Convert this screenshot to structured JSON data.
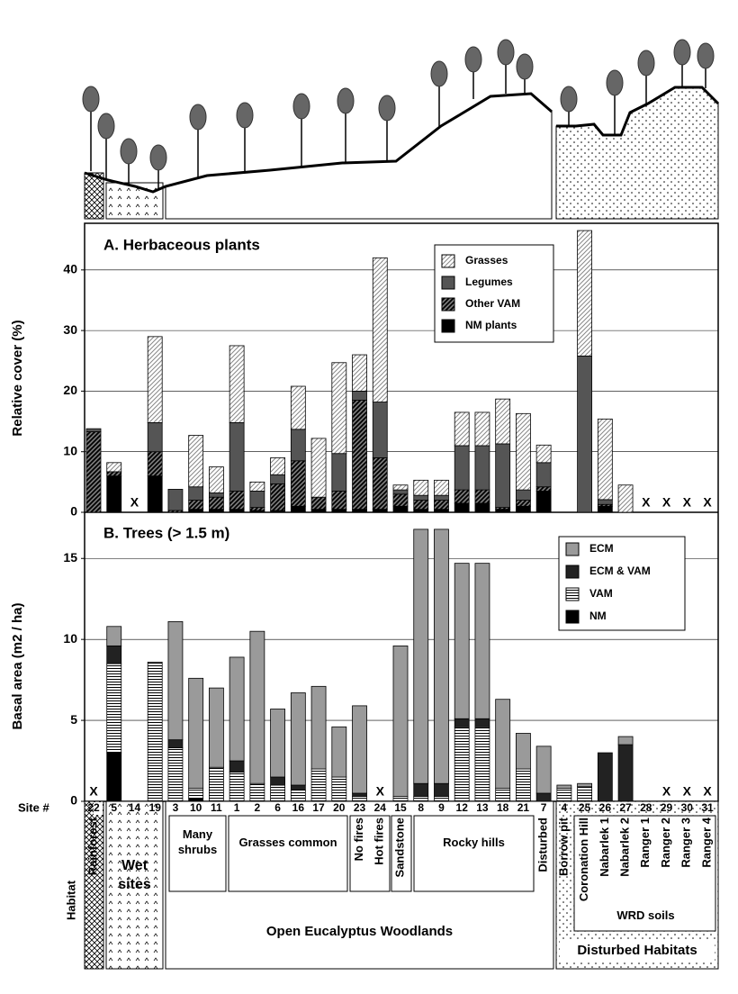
{
  "site_label": "Site #",
  "no_data_label": "X",
  "habitat": {
    "label": "Habitat",
    "labels": [
      "Rainforest",
      "Wet sites",
      "Many shrubs",
      "Grasses common",
      "No fires",
      "Hot fires",
      "Sandstone",
      "Rocky hills",
      "Disturbed",
      "Open Eucalyptus Woodlands",
      "Borrow pit",
      "Coronation Hill",
      "Nabarlek 1",
      "Nabarlek 2",
      "Ranger 1",
      "Ranger 2",
      "Ranger 3",
      "Ranger 4",
      "WRD soils",
      "Disturbed Habitats"
    ]
  },
  "chart_data": [
    {
      "type": "stacked-bar",
      "title": "A. Herbaceous plants",
      "y_label": "Relative cover (%)",
      "ylim": [
        0,
        47.7
      ],
      "yticks": [
        0,
        10,
        20,
        30,
        40
      ],
      "grid": true,
      "series": [
        {
          "name": "NM plants",
          "color": "#000000",
          "pattern": "none",
          "values": [
            0,
            6,
            null,
            6,
            0,
            0.5,
            0.5,
            0.5,
            0.3,
            0.3,
            1,
            0.5,
            0.5,
            0.5,
            0.5,
            1,
            0.5,
            0.5,
            1.5,
            1.5,
            0.5,
            1,
            3.5,
            0,
            0,
            1,
            0,
            null,
            null,
            null,
            null
          ]
        },
        {
          "name": "Other VAM",
          "color": "#7a7a7a",
          "pattern": "dense-diagonal",
          "values": [
            13.3,
            0.7,
            null,
            4,
            0.3,
            1.5,
            2,
            3,
            0.5,
            4.4,
            7.5,
            2,
            3,
            18,
            8.5,
            2,
            1.5,
            1.5,
            2.2,
            2.2,
            0.3,
            1,
            0.7,
            0,
            0,
            0.3,
            0,
            null,
            null,
            null,
            null
          ]
        },
        {
          "name": "Legumes",
          "color": "#555555",
          "pattern": "none",
          "values": [
            0.5,
            0,
            null,
            4.8,
            3.5,
            2.2,
            0.7,
            11.3,
            2.7,
            1.5,
            5.2,
            0,
            6.2,
            1.5,
            9.2,
            0.7,
            0.8,
            0.8,
            7.3,
            7.3,
            10.5,
            1.7,
            4,
            0,
            25.8,
            0.8,
            0,
            null,
            null,
            null,
            null
          ]
        },
        {
          "name": "Grasses",
          "color": "#ffffff",
          "pattern": "diagonal",
          "values": [
            0,
            1.5,
            null,
            14.2,
            0,
            8.5,
            4.3,
            12.7,
            1.5,
            2.8,
            7.1,
            9.7,
            15,
            6,
            23.8,
            0.8,
            2.5,
            2.5,
            5.5,
            5.5,
            7.4,
            12.6,
            2.9,
            0,
            20.7,
            13.3,
            4.5,
            null,
            null,
            null,
            null
          ]
        }
      ]
    },
    {
      "type": "stacked-bar",
      "title": "B. Trees (> 1.5 m)",
      "y_label": "Basal area (m2 / ha)",
      "categories": [
        "22",
        "5",
        "14",
        "19",
        "3",
        "10",
        "11",
        "1",
        "2",
        "6",
        "16",
        "17",
        "20",
        "23",
        "24",
        "15",
        "8",
        "9",
        "12",
        "13",
        "18",
        "21",
        "7",
        "4",
        "25",
        "26",
        "27",
        "28",
        "29",
        "30",
        "31"
      ],
      "ylim": [
        0,
        17.85
      ],
      "yticks": [
        0,
        5,
        10,
        15
      ],
      "grid": true,
      "series": [
        {
          "name": "NM",
          "color": "#000000",
          "pattern": "none",
          "values": [
            null,
            3,
            0,
            0,
            0,
            0.2,
            0,
            0,
            0,
            0,
            0,
            0,
            0,
            0,
            null,
            0,
            0,
            0,
            0,
            0,
            0,
            0,
            0,
            0,
            0,
            0,
            0,
            0,
            null,
            null,
            null
          ]
        },
        {
          "name": "VAM",
          "color": "#ffffff",
          "pattern": "horizontal",
          "values": [
            null,
            5.5,
            0,
            8.6,
            3.3,
            0.6,
            2.1,
            1.8,
            1.1,
            1,
            0.7,
            2,
            1.5,
            0.3,
            null,
            0.3,
            0.3,
            0.3,
            4.6,
            4.6,
            0.8,
            2,
            0,
            0.8,
            0.9,
            0,
            0,
            0,
            null,
            null,
            null
          ]
        },
        {
          "name": "ECM & VAM",
          "color": "#222222",
          "pattern": "none",
          "values": [
            null,
            1.1,
            0,
            0,
            0.5,
            0,
            0,
            0.7,
            0,
            0.5,
            0.3,
            0,
            0,
            0.2,
            null,
            0,
            0.8,
            0.8,
            0.5,
            0.5,
            0,
            0,
            0.5,
            0,
            0,
            3,
            3.5,
            0,
            null,
            null,
            null
          ]
        },
        {
          "name": "ECM",
          "color": "#9a9a9a",
          "pattern": "none",
          "values": [
            null,
            1.2,
            0,
            0,
            7.3,
            6.8,
            4.9,
            6.4,
            9.4,
            4.2,
            5.7,
            5.1,
            3.1,
            5.4,
            null,
            9.3,
            15.7,
            15.7,
            9.6,
            9.6,
            5.5,
            2.2,
            2.9,
            0.2,
            0.2,
            0,
            0.5,
            0,
            null,
            null,
            null
          ]
        }
      ]
    }
  ]
}
